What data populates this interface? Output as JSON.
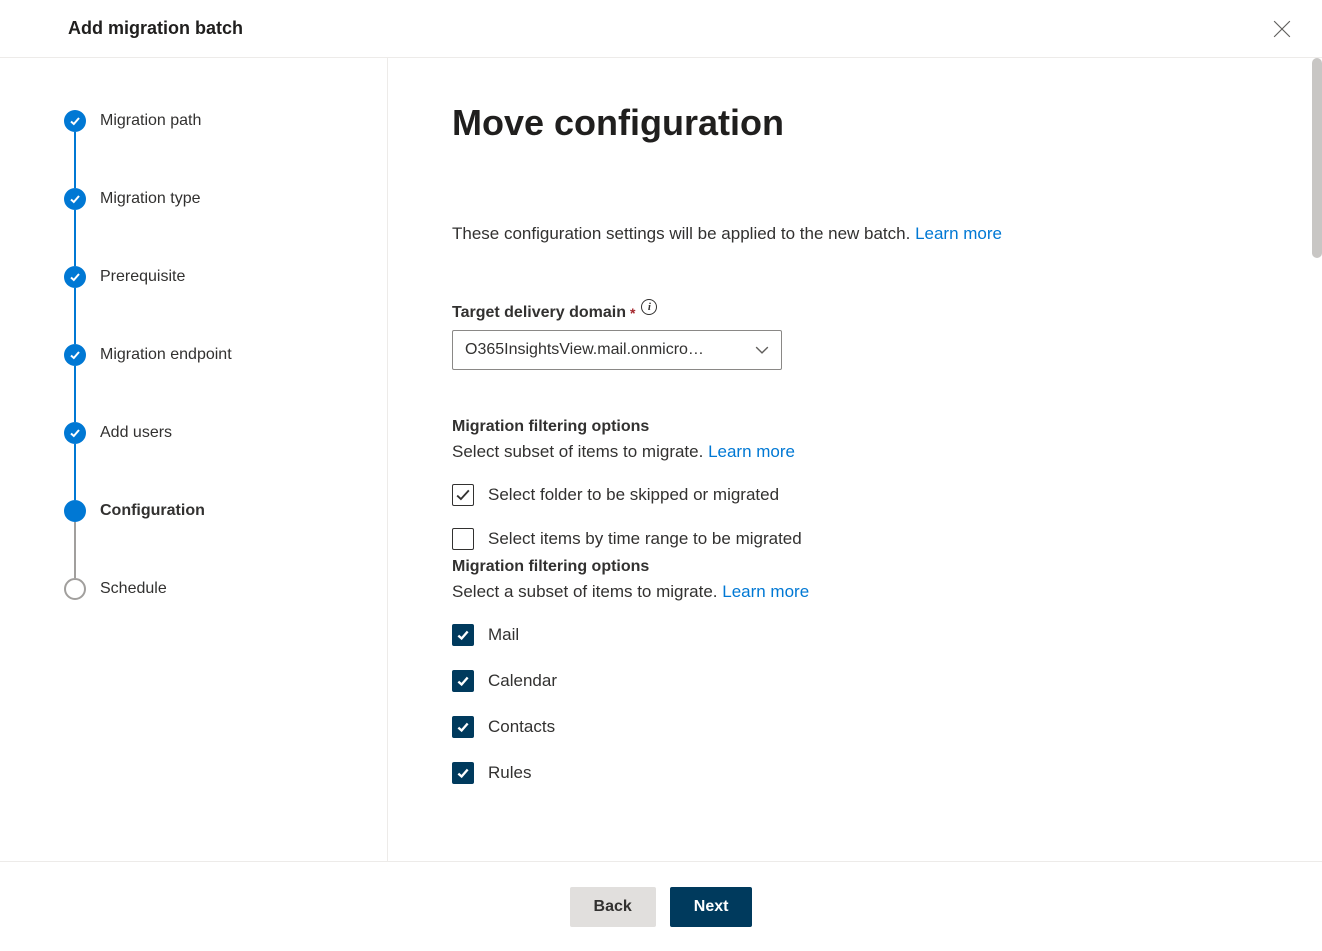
{
  "header": {
    "title": "Add migration batch"
  },
  "steps": [
    {
      "label": "Migration path",
      "state": "completed"
    },
    {
      "label": "Migration type",
      "state": "completed"
    },
    {
      "label": "Prerequisite",
      "state": "completed"
    },
    {
      "label": "Migration endpoint",
      "state": "completed"
    },
    {
      "label": "Add users",
      "state": "completed"
    },
    {
      "label": "Configuration",
      "state": "current"
    },
    {
      "label": "Schedule",
      "state": "upcoming"
    }
  ],
  "page": {
    "heading": "Move configuration",
    "intro_prefix": "These configuration settings will be applied to the new batch. ",
    "intro_link": "Learn more",
    "target_domain": {
      "label": "Target delivery domain",
      "required_marker": "*",
      "selected": "O365InsightsView.mail.onmicro…"
    },
    "filter1": {
      "heading": "Migration filtering options",
      "desc_prefix": "Select subset of items to migrate. ",
      "desc_link": "Learn more",
      "opt_folder": {
        "label": "Select folder to be skipped or migrated",
        "checked": true,
        "style": "outline"
      },
      "opt_time": {
        "label": "Select items by time range to be migrated",
        "checked": false,
        "style": "outline"
      }
    },
    "filter2": {
      "heading": "Migration filtering options",
      "desc_prefix": "Select a subset of items to migrate. ",
      "desc_link": "Learn more",
      "items": [
        {
          "label": "Mail",
          "checked": true
        },
        {
          "label": "Calendar",
          "checked": true
        },
        {
          "label": "Contacts",
          "checked": true
        },
        {
          "label": "Rules",
          "checked": true
        }
      ]
    }
  },
  "footer": {
    "back": "Back",
    "next": "Next"
  },
  "colors": {
    "accent": "#0078d4",
    "dark_primary": "#003a5d",
    "border": "#edebe9",
    "text": "#323130"
  }
}
